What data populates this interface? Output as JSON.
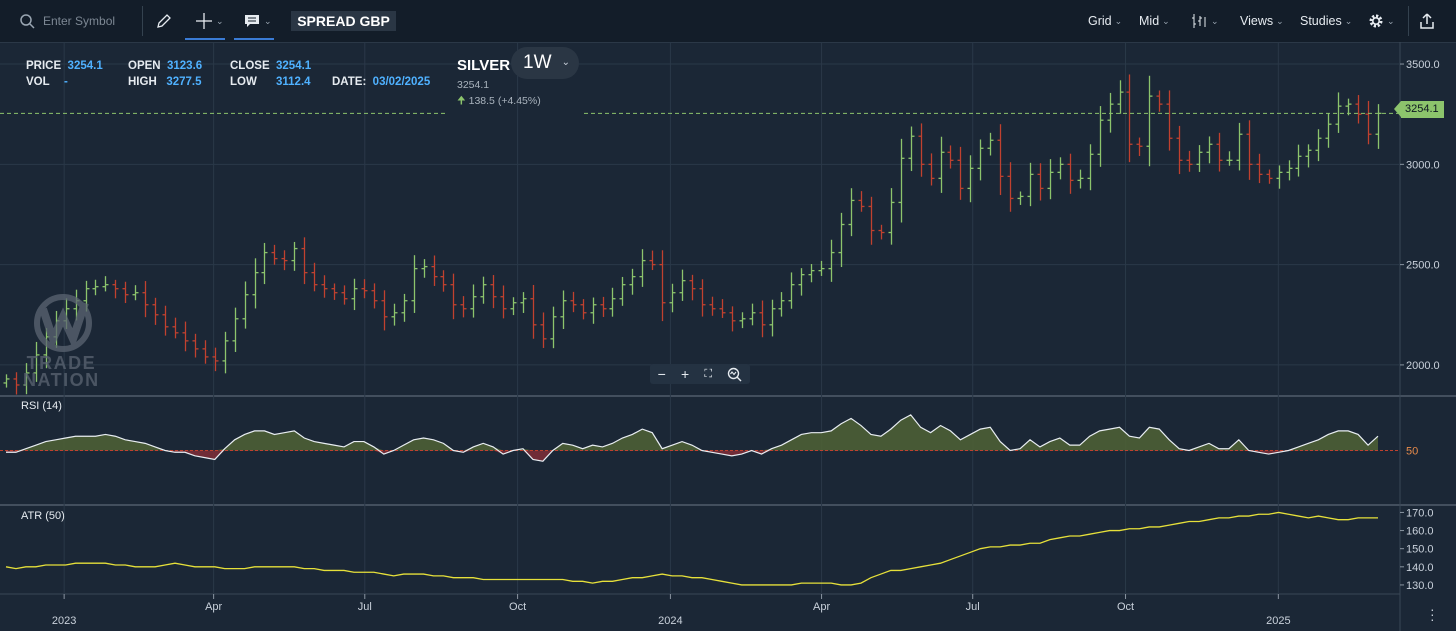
{
  "toolbar": {
    "search_placeholder": "Enter Symbol",
    "symbol": "SPREAD GBP",
    "grid": "Grid",
    "mid": "Mid",
    "views": "Views",
    "studies": "Studies"
  },
  "legend": {
    "price_label": "PRICE",
    "price": "3254.1",
    "vol_label": "VOL",
    "vol": "-",
    "open_label": "OPEN",
    "open": "3123.6",
    "high_label": "HIGH",
    "high": "3277.5",
    "close_label": "CLOSE",
    "close": "3254.1",
    "low_label": "LOW",
    "low": "3112.4",
    "date_label": "DATE:",
    "date": "03/02/2025"
  },
  "instrument": {
    "name": "SILVER",
    "timeframe": "1W",
    "last": "3254.1",
    "change": "138.5 (+4.45%)"
  },
  "price_tag": "3254.1",
  "rsi": {
    "label": "RSI (14)",
    "level_label": "50"
  },
  "atr": {
    "label": "ATR (50)"
  },
  "watermark": {
    "line1": "TRADE",
    "line2": "NATION"
  },
  "colors": {
    "up": "#8cc46c",
    "down": "#c0412f",
    "background": "#1b2736",
    "atr": "#e6e03a",
    "rsi_fill_up": "#4d5f35",
    "rsi_fill_down": "#7a2d37"
  },
  "chart_data": {
    "type": "ohlc",
    "price_axis": {
      "ticks": [
        2000.0,
        2500.0,
        3000.0,
        3500.0
      ],
      "labels": [
        "2000.0",
        "2500.0",
        "3000.0",
        "3500.0"
      ],
      "range": [
        1850,
        3560
      ]
    },
    "rsi_axis": {
      "ticks": [
        50
      ],
      "labels": [
        "50"
      ],
      "range": [
        20,
        80
      ]
    },
    "atr_axis": {
      "ticks": [
        130,
        140,
        150,
        160,
        170
      ],
      "labels": [
        "130.0",
        "140.0",
        "150.0",
        "160.0",
        "170.0"
      ],
      "range": [
        125,
        173
      ]
    },
    "x_axis": {
      "labels": [
        {
          "text": "2023",
          "date": "2023-01-01",
          "major": true
        },
        {
          "text": "Apr",
          "date": "2023-04-01",
          "major": false
        },
        {
          "text": "Jul",
          "date": "2023-07-01",
          "major": false
        },
        {
          "text": "Oct",
          "date": "2023-10-01",
          "major": false
        },
        {
          "text": "2024",
          "date": "2024-01-01",
          "major": true
        },
        {
          "text": "Apr",
          "date": "2024-04-01",
          "major": false
        },
        {
          "text": "Jul",
          "date": "2024-07-01",
          "major": false
        },
        {
          "text": "Oct",
          "date": "2024-10-01",
          "major": false
        },
        {
          "text": "2025",
          "date": "2025-01-01",
          "major": true
        }
      ]
    },
    "weekly_close": [
      1930,
      1900,
      1960,
      2050,
      2140,
      2220,
      2280,
      2320,
      2380,
      2390,
      2400,
      2380,
      2350,
      2360,
      2300,
      2250,
      2190,
      2160,
      2120,
      2080,
      2040,
      2020,
      2120,
      2230,
      2350,
      2460,
      2560,
      2530,
      2520,
      2580,
      2460,
      2400,
      2380,
      2360,
      2330,
      2380,
      2370,
      2320,
      2240,
      2260,
      2320,
      2480,
      2490,
      2440,
      2400,
      2300,
      2280,
      2340,
      2400,
      2340,
      2280,
      2310,
      2330,
      2200,
      2130,
      2240,
      2320,
      2300,
      2260,
      2300,
      2280,
      2330,
      2400,
      2440,
      2520,
      2500,
      2310,
      2360,
      2420,
      2380,
      2300,
      2280,
      2260,
      2220,
      2230,
      2260,
      2200,
      2280,
      2320,
      2400,
      2450,
      2470,
      2480,
      2560,
      2700,
      2820,
      2790,
      2670,
      2660,
      2810,
      3030,
      3140,
      3000,
      2930,
      3060,
      3020,
      2880,
      2980,
      3080,
      3120,
      2940,
      2830,
      2840,
      2950,
      2880,
      2960,
      3000,
      2920,
      2930,
      3050,
      3220,
      3300,
      3360,
      3100,
      3090,
      3340,
      3300,
      3130,
      3020,
      3000,
      3060,
      3100,
      3020,
      3020,
      3150,
      3000,
      2950,
      2930,
      2960,
      2980,
      3040,
      3070,
      3130,
      3200,
      3290,
      3300,
      3250,
      3150,
      3254.1
    ],
    "rsi": [
      49,
      49,
      51,
      53,
      55,
      56,
      57,
      58,
      58,
      58,
      59,
      58,
      56,
      55,
      54,
      52,
      50,
      49,
      49,
      47,
      46,
      45,
      51,
      56,
      59,
      61,
      61,
      59,
      60,
      61,
      57,
      55,
      54,
      53,
      52,
      55,
      55,
      52,
      48,
      50,
      53,
      56,
      57,
      56,
      54,
      50,
      49,
      52,
      54,
      52,
      48,
      50,
      51,
      45,
      44,
      50,
      54,
      53,
      51,
      53,
      52,
      54,
      57,
      59,
      62,
      60,
      51,
      53,
      55,
      53,
      50,
      49,
      48,
      47,
      48,
      50,
      48,
      51,
      53,
      56,
      59,
      60,
      60,
      61,
      65,
      68,
      64,
      59,
      58,
      62,
      67,
      70,
      63,
      60,
      64,
      61,
      56,
      59,
      62,
      63,
      55,
      50,
      51,
      56,
      52,
      55,
      57,
      53,
      53,
      58,
      61,
      62,
      63,
      58,
      57,
      63,
      62,
      56,
      51,
      50,
      52,
      54,
      51,
      51,
      56,
      50,
      49,
      48,
      49,
      50,
      52,
      54,
      56,
      59,
      61,
      61,
      59,
      53,
      58
    ],
    "atr": [
      140,
      139,
      140,
      140,
      141,
      141,
      141,
      142,
      142,
      142,
      142,
      141,
      141,
      140,
      140,
      140,
      141,
      142,
      141,
      140,
      140,
      140,
      139,
      139,
      139,
      140,
      140,
      140,
      140,
      140,
      139,
      139,
      138,
      138,
      138,
      137,
      137,
      137,
      136,
      135,
      136,
      136,
      136,
      135,
      135,
      134,
      134,
      134,
      133,
      133,
      133,
      133,
      133,
      133,
      133,
      133,
      133,
      132,
      132,
      131,
      132,
      132,
      133,
      134,
      134,
      135,
      136,
      135,
      135,
      134,
      134,
      133,
      132,
      131,
      130,
      130,
      130,
      130,
      130,
      130,
      131,
      131,
      131,
      131,
      130,
      130,
      131,
      134,
      136,
      138,
      138,
      139,
      140,
      141,
      142,
      144,
      146,
      148,
      150,
      151,
      151,
      152,
      152,
      153,
      153,
      155,
      156,
      157,
      157,
      158,
      159,
      160,
      160,
      161,
      161,
      162,
      162,
      163,
      164,
      165,
      165,
      166,
      167,
      167,
      168,
      168,
      169,
      169,
      170,
      169,
      168,
      167,
      168,
      167,
      166,
      166,
      167,
      167,
      167
    ],
    "first_week": "2022-11-27",
    "last_week": "2025-03-02"
  }
}
